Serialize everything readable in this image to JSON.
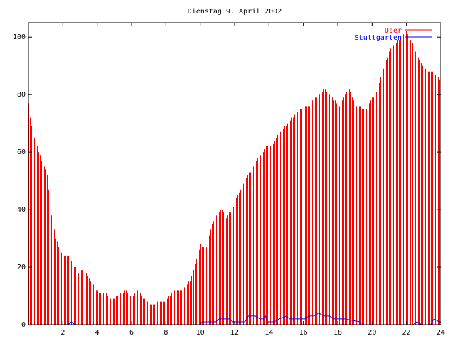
{
  "chart_data": {
    "type": "bar",
    "title": "Dienstag 9. April 2002",
    "xlabel": "",
    "ylabel": "",
    "xlim": [
      0,
      24
    ],
    "ylim": [
      0,
      105
    ],
    "x_ticks": [
      "2",
      "4",
      "6",
      "8",
      "10",
      "12",
      "14",
      "16",
      "18",
      "20",
      "22",
      "24"
    ],
    "y_ticks": [
      "0",
      "20",
      "40",
      "60",
      "80",
      "100"
    ],
    "grid": false,
    "legend_position": "top-right",
    "bar_interval_hours": 0.0833,
    "series": [
      {
        "name": "User",
        "style": "impulses",
        "color": "#ff0000",
        "keypoints_x": [
          0,
          0.1,
          0.3,
          0.5,
          0.7,
          0.9,
          1.1,
          1.2,
          1.4,
          1.6,
          1.8,
          2.0,
          2.3,
          2.6,
          2.9,
          3.2,
          3.5,
          3.8,
          4.1,
          4.4,
          4.8,
          5.2,
          5.6,
          6.0,
          6.4,
          6.8,
          7.2,
          7.6,
          8.0,
          8.4,
          8.8,
          9.1,
          9.4,
          9.7,
          10.0,
          10.3,
          10.6,
          10.9,
          11.2,
          11.5,
          11.8,
          12.1,
          12.4,
          12.7,
          13.0,
          13.3,
          13.6,
          13.9,
          14.2,
          14.5,
          14.8,
          15.1,
          15.4,
          15.7,
          16.0,
          16.3,
          16.6,
          16.9,
          17.2,
          17.5,
          17.8,
          18.1,
          18.4,
          18.7,
          19.0,
          19.3,
          19.6,
          19.9,
          20.2,
          20.5,
          20.8,
          21.1,
          21.4,
          21.7,
          22.0,
          22.3,
          22.6,
          22.9,
          23.2,
          23.5,
          23.8,
          24.0
        ],
        "keypoints_y": [
          77,
          71,
          66,
          62,
          58,
          55,
          52,
          45,
          35,
          30,
          26,
          24,
          24,
          21,
          18,
          19,
          16,
          13,
          11,
          11,
          9,
          10,
          12,
          10,
          12,
          8,
          7,
          8,
          8,
          12,
          12,
          13,
          15,
          22,
          28,
          26,
          34,
          38,
          40,
          37,
          40,
          44,
          48,
          52,
          54,
          58,
          60,
          62,
          62,
          66,
          68,
          70,
          72,
          74,
          76,
          76,
          79,
          80,
          82,
          80,
          78,
          76,
          80,
          82,
          76,
          76,
          74,
          78,
          80,
          86,
          92,
          96,
          98,
          100,
          102,
          98,
          94,
          90,
          88,
          88,
          86,
          84
        ]
      },
      {
        "name": "Stuttgarten",
        "style": "line",
        "color": "#0000ff",
        "keypoints_x": [
          0,
          2.3,
          2.5,
          2.7,
          10.0,
          10.1,
          10.9,
          11.1,
          11.7,
          11.9,
          12.6,
          12.8,
          13.2,
          13.5,
          13.7,
          13.8,
          13.9,
          14.3,
          14.6,
          15.0,
          15.2,
          16.1,
          16.3,
          16.6,
          16.9,
          17.2,
          17.5,
          17.8,
          18.4,
          19.3,
          19.5,
          22.4,
          22.6,
          22.9,
          23.4,
          23.6,
          23.9,
          24.0
        ],
        "keypoints_y": [
          0,
          0,
          1,
          0,
          0,
          1,
          1,
          2,
          2,
          1,
          1,
          3,
          3,
          2,
          2,
          3,
          1,
          1,
          2,
          3,
          2,
          2,
          3,
          3,
          4,
          3,
          3,
          2,
          2,
          1,
          0,
          0,
          1,
          0,
          0,
          2,
          1,
          1
        ]
      }
    ]
  }
}
